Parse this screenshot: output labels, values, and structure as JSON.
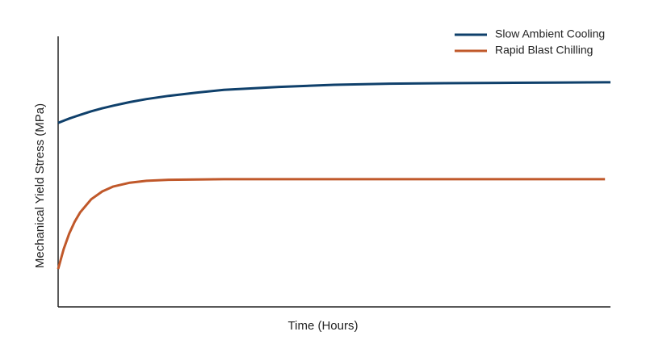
{
  "chart_data": {
    "type": "line",
    "x_label": "Time (Hours)",
    "y_label": "Mechanical Yield Stress (MPa)",
    "x": [
      0,
      1,
      2,
      3,
      4,
      6,
      8,
      10,
      13,
      16,
      20,
      25,
      30,
      40,
      50,
      60,
      70,
      80,
      90,
      99,
      100
    ],
    "series": [
      {
        "name": "Slow Ambient Cooling",
        "color": "#0f406b",
        "values": [
          68.0,
          68.8,
          69.6,
          70.3,
          71.0,
          72.3,
          73.4,
          74.4,
          75.7,
          76.8,
          78.0,
          79.2,
          80.2,
          81.3,
          82.1,
          82.5,
          82.7,
          82.8,
          82.9,
          83.0,
          83.0
        ]
      },
      {
        "name": "Rapid Blast Chilling",
        "color": "#c0582a",
        "values": [
          14.0,
          21.3,
          27.1,
          31.5,
          35.0,
          39.8,
          42.7,
          44.5,
          45.9,
          46.6,
          47.0,
          47.1,
          47.2,
          47.2,
          47.2,
          47.2,
          47.2,
          47.2,
          47.2,
          47.2,
          null
        ]
      }
    ],
    "xlim": [
      0,
      100
    ],
    "ylim": [
      0,
      100
    ],
    "legend": "top-right",
    "grid": false
  }
}
